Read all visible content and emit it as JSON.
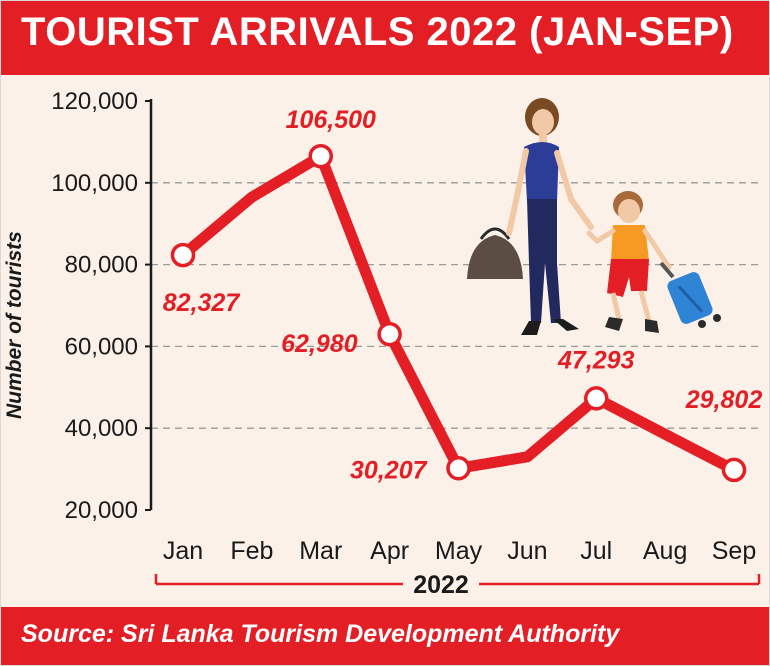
{
  "header": {
    "title": "TOURIST ARRIVALS 2022 (JAN-SEP)"
  },
  "footer": {
    "source": "Source: Sri Lanka Tourism Development Authority"
  },
  "colors": {
    "accent": "#e41e25",
    "background": "#fbf1e9",
    "text": "#1a1a1a",
    "grid": "#9a9a9a"
  },
  "illustration": {
    "name": "woman-and-child-travellers-icon"
  },
  "chart_data": {
    "type": "line",
    "title": "TOURIST ARRIVALS 2022 (JAN-SEP)",
    "xlabel": "2022",
    "ylabel": "Number of tourists",
    "categories": [
      "Jan",
      "Feb",
      "Mar",
      "Apr",
      "May",
      "Jun",
      "Jul",
      "Aug",
      "Sep"
    ],
    "series": [
      {
        "values": [
          82327,
          96500,
          106500,
          62980,
          30207,
          33000,
          47293,
          38500,
          29802
        ]
      }
    ],
    "markers": [
      0,
      2,
      3,
      4,
      6,
      8
    ],
    "data_labels": [
      {
        "index": 0,
        "text": "82,327"
      },
      {
        "index": 2,
        "text": "106,500"
      },
      {
        "index": 3,
        "text": "62,980"
      },
      {
        "index": 4,
        "text": "30,207"
      },
      {
        "index": 6,
        "text": "47,293"
      },
      {
        "index": 8,
        "text": "29,802"
      }
    ],
    "yticks": [
      20000,
      40000,
      60000,
      80000,
      100000,
      120000
    ],
    "ytick_labels": [
      "20,000",
      "40,000",
      "60,000",
      "80,000",
      "100,000",
      "120,000"
    ],
    "ylim": [
      20000,
      120000
    ],
    "grid": "horizontal dashed",
    "legend": "none"
  }
}
